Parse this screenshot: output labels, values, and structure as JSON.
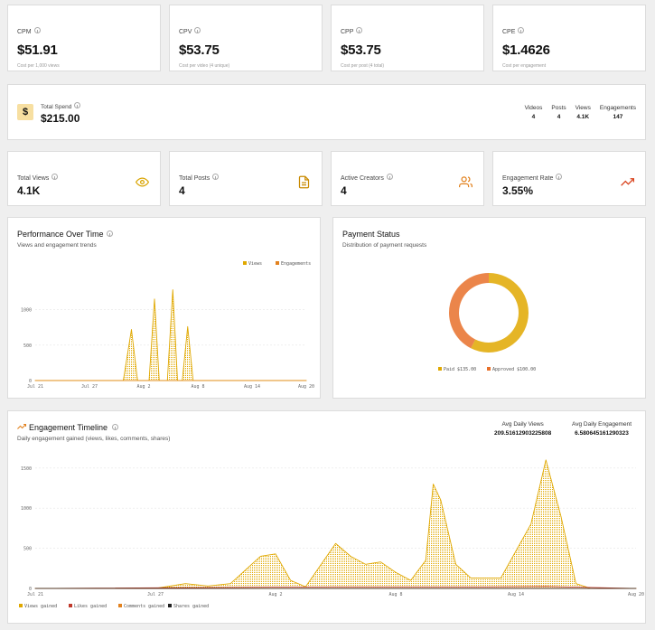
{
  "metrics": [
    {
      "label": "CPM",
      "value": "$51.91",
      "sub": "Cost per 1,000 views"
    },
    {
      "label": "CPV",
      "value": "$53.75",
      "sub": "Cost per video (4 unique)"
    },
    {
      "label": "CPP",
      "value": "$53.75",
      "sub": "Cost per post (4 total)"
    },
    {
      "label": "CPE",
      "value": "$1.4626",
      "sub": "Cost per engagement"
    }
  ],
  "spend": {
    "icon": "dollar-icon",
    "label": "Total Spend",
    "value": "$215.00",
    "stats": [
      {
        "label": "Videos",
        "value": "4"
      },
      {
        "label": "Posts",
        "value": "4"
      },
      {
        "label": "Views",
        "value": "4.1K"
      },
      {
        "label": "Engagements",
        "value": "147"
      }
    ]
  },
  "stats": [
    {
      "label": "Total Views",
      "value": "4.1K",
      "icon": "eye-icon"
    },
    {
      "label": "Total Posts",
      "value": "4",
      "icon": "document-icon"
    },
    {
      "label": "Active Creators",
      "value": "4",
      "icon": "users-icon"
    },
    {
      "label": "Engagement Rate",
      "value": "3.55%",
      "icon": "trending-up-icon"
    }
  ],
  "colors": {
    "views": "#e0a800",
    "engagements": "#e2821f",
    "likes": "#c0392b",
    "comments": "#e2821f",
    "shares": "#222222",
    "paid": "#e0a800",
    "approved": "#e8702a"
  },
  "performance": {
    "title": "Performance Over Time",
    "subtitle": "Views and engagement trends",
    "legend": [
      "Views",
      "Engagements"
    ]
  },
  "payment": {
    "title": "Payment Status",
    "subtitle": "Distribution of payment requests",
    "legend": [
      {
        "label": "Paid",
        "value": "$135.00"
      },
      {
        "label": "Approved",
        "value": "$100.00"
      }
    ]
  },
  "timeline": {
    "title": "Engagement Timeline",
    "subtitle": "Daily engagement gained (views, likes, comments, shares)",
    "avg_views_label": "Avg Daily Views",
    "avg_views_value": "209.51612903225808",
    "avg_eng_label": "Avg Daily Engagement",
    "avg_eng_value": "6.580645161290323",
    "legend": [
      "Views gained",
      "Likes gained",
      "Comments gained",
      "Shares gained"
    ]
  },
  "chart_data": [
    {
      "type": "area",
      "x": [
        "Jul 21",
        "Jul 27",
        "Aug 2",
        "Aug 8",
        "Aug 14",
        "Aug 20"
      ],
      "ylim": [
        0,
        1300
      ],
      "yticks": [
        "0",
        "500",
        "1000"
      ],
      "series": [
        {
          "name": "Views",
          "points": [
            [
              0,
              0
            ],
            [
              13,
              0
            ],
            [
              14.2,
              720
            ],
            [
              15.1,
              0
            ],
            [
              16.8,
              0
            ],
            [
              17.6,
              1150
            ],
            [
              18.3,
              0
            ],
            [
              19.5,
              0
            ],
            [
              20.3,
              1280
            ],
            [
              21,
              0
            ],
            [
              21.7,
              0
            ],
            [
              22.5,
              760
            ],
            [
              23.3,
              0
            ],
            [
              40,
              0
            ]
          ]
        },
        {
          "name": "Engagements",
          "points": [
            [
              0,
              0
            ],
            [
              40,
              0
            ]
          ]
        }
      ]
    },
    {
      "type": "pie",
      "series": [
        {
          "name": "Paid",
          "values": [
            135
          ]
        },
        {
          "name": "Approved",
          "values": [
            100
          ]
        }
      ]
    },
    {
      "type": "area",
      "x": [
        "Jul 21",
        "Jul 27",
        "Aug 2",
        "Aug 8",
        "Aug 14",
        "Aug 20"
      ],
      "ylim": [
        0,
        1700
      ],
      "yticks": [
        "0",
        "500",
        "1000",
        "1500"
      ],
      "series": [
        {
          "name": "Views gained",
          "points": [
            [
              0,
              0
            ],
            [
              8,
              0
            ],
            [
              10,
              60
            ],
            [
              11.5,
              30
            ],
            [
              13,
              60
            ],
            [
              15,
              400
            ],
            [
              16,
              430
            ],
            [
              17,
              100
            ],
            [
              18,
              20
            ],
            [
              20,
              560
            ],
            [
              21,
              400
            ],
            [
              22,
              300
            ],
            [
              23,
              330
            ],
            [
              24,
              200
            ],
            [
              25,
              100
            ],
            [
              26,
              350
            ],
            [
              26.5,
              1300
            ],
            [
              27,
              1100
            ],
            [
              28,
              300
            ],
            [
              29,
              130
            ],
            [
              31,
              130
            ],
            [
              33,
              800
            ],
            [
              34,
              1600
            ],
            [
              35,
              900
            ],
            [
              36,
              60
            ],
            [
              37,
              0
            ],
            [
              40,
              0
            ]
          ]
        },
        {
          "name": "Likes gained",
          "points": [
            [
              0,
              0
            ],
            [
              20,
              20
            ],
            [
              30,
              20
            ],
            [
              34,
              25
            ],
            [
              40,
              0
            ]
          ]
        },
        {
          "name": "Comments gained",
          "points": [
            [
              0,
              0
            ],
            [
              40,
              0
            ]
          ]
        },
        {
          "name": "Shares gained",
          "points": [
            [
              0,
              0
            ],
            [
              40,
              0
            ]
          ]
        }
      ]
    }
  ]
}
